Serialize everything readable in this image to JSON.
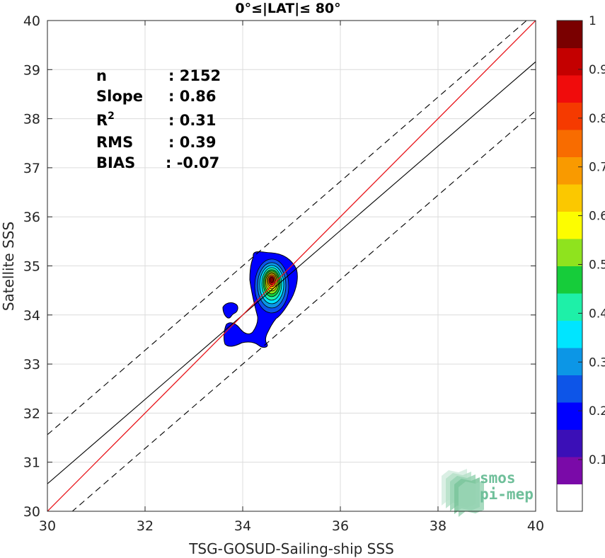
{
  "chart_data": {
    "type": "contour",
    "title": "0°≤|LAT|≤ 80°",
    "xlabel": "TSG-GOSUD-Sailing-ship SSS",
    "ylabel": "Satellite SSS",
    "xlim": [
      30,
      40
    ],
    "ylim": [
      30,
      40
    ],
    "xticks": [
      "30",
      "32",
      "34",
      "36",
      "38",
      "40"
    ],
    "yticks": [
      "30",
      "31",
      "32",
      "33",
      "34",
      "35",
      "36",
      "37",
      "38",
      "39",
      "40"
    ],
    "grid": true,
    "stats": [
      {
        "label": "n",
        "sep": ": ",
        "value": "2152"
      },
      {
        "label": "Slope",
        "sep": ": ",
        "value": "0.86"
      },
      {
        "label": "R",
        "sup": "2",
        "sep": ": ",
        "value": "0.31"
      },
      {
        "label": "RMS",
        "sep": ": ",
        "value": "0.39"
      },
      {
        "label": "BIAS",
        "sep": ": ",
        "value": "-0.07"
      }
    ],
    "lines": {
      "identity": {
        "color": "#e8141a",
        "points": [
          [
            30,
            30
          ],
          [
            40,
            40
          ]
        ]
      },
      "regression": {
        "color": "#000000",
        "slope": 0.86,
        "intercept": 4.76
      },
      "envelope_upper": {
        "slope": 0.86,
        "intercept": 5.76,
        "style": "dashed"
      },
      "envelope_lower": {
        "slope": 0.86,
        "intercept": 3.76,
        "style": "dashed"
      }
    },
    "density_peak": {
      "x": 34.58,
      "y": 34.72
    },
    "colorbar": {
      "labels": [
        "1",
        "0.9",
        "0.8",
        "0.7",
        "0.6",
        "0.5",
        "0.4",
        "0.3",
        "0.2",
        "0.1"
      ],
      "label_values": [
        1,
        0.9,
        0.8,
        0.7,
        0.6,
        0.5,
        0.4,
        0.3,
        0.2,
        0.1
      ],
      "range": [
        0.05,
        1.0
      ],
      "colors": [
        "#ffffff",
        "#7a0aa8",
        "#3b0fb7",
        "#0000ff",
        "#0d55e8",
        "#0c96e6",
        "#00e5ff",
        "#1ef0a8",
        "#16cc3a",
        "#8fe31e",
        "#fdfd00",
        "#fbc800",
        "#f99a00",
        "#f86c00",
        "#f53a00",
        "#f00c0c",
        "#c40000",
        "#7a0000"
      ]
    }
  },
  "watermark": {
    "line1": "smos",
    "line2": "pi-mep"
  }
}
